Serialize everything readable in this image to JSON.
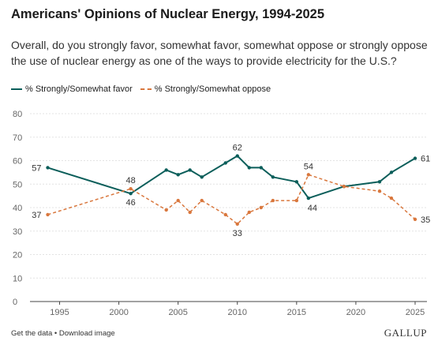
{
  "header": {
    "title": "Americans' Opinions of Nuclear Energy, 1994-2025",
    "subtitle": "Overall, do you strongly favor, somewhat favor, somewhat oppose or strongly oppose the use of nuclear energy as one of the ways to provide electricity for the U.S.?"
  },
  "footer": {
    "get_data": "Get the data",
    "separator": " • ",
    "download": "Download image",
    "brand": "GALLUP"
  },
  "colors": {
    "favor": "#0b5e5a",
    "oppose": "#d9773d",
    "grid": "#e3e3e3",
    "axis": "#444444"
  },
  "chart_data": {
    "type": "line",
    "title": "Americans' Opinions of Nuclear Energy, 1994-2025",
    "xlabel": "",
    "ylabel": "",
    "xlim": [
      1992.5,
      2026
    ],
    "ylim": [
      0,
      80
    ],
    "x_ticks": [
      1995,
      2000,
      2005,
      2010,
      2015,
      2020,
      2025
    ],
    "y_ticks": [
      0,
      10,
      20,
      30,
      40,
      50,
      60,
      70,
      80
    ],
    "grid": true,
    "legend": "top-left",
    "series": [
      {
        "name": "% Strongly/Somewhat favor",
        "style": "solid",
        "x": [
          1994,
          2001,
          2004,
          2005,
          2006,
          2007,
          2009,
          2010,
          2011,
          2012,
          2013,
          2015,
          2016,
          2019,
          2022,
          2023,
          2025
        ],
        "values": [
          57,
          46,
          56,
          54,
          56,
          53,
          59,
          62,
          57,
          57,
          53,
          51,
          44,
          49,
          51,
          55,
          61
        ]
      },
      {
        "name": "% Strongly/Somewhat oppose",
        "style": "dashed",
        "x": [
          1994,
          2001,
          2004,
          2005,
          2006,
          2007,
          2009,
          2010,
          2011,
          2012,
          2013,
          2015,
          2016,
          2019,
          2022,
          2023,
          2025
        ],
        "values": [
          37,
          48,
          39,
          43,
          38,
          43,
          37,
          33,
          38,
          40,
          43,
          43,
          54,
          49,
          47,
          44,
          35
        ]
      }
    ],
    "data_labels": [
      {
        "series": 0,
        "x": 1994,
        "value": "57",
        "pos": "left"
      },
      {
        "series": 0,
        "x": 2001,
        "value": "46",
        "pos": "below"
      },
      {
        "series": 0,
        "x": 2010,
        "value": "62",
        "pos": "above"
      },
      {
        "series": 0,
        "x": 2016,
        "value": "44",
        "pos": "below-right"
      },
      {
        "series": 0,
        "x": 2025,
        "value": "61",
        "pos": "right"
      },
      {
        "series": 1,
        "x": 1994,
        "value": "37",
        "pos": "left"
      },
      {
        "series": 1,
        "x": 2001,
        "value": "48",
        "pos": "above"
      },
      {
        "series": 1,
        "x": 2010,
        "value": "33",
        "pos": "below"
      },
      {
        "series": 1,
        "x": 2016,
        "value": "54",
        "pos": "above"
      },
      {
        "series": 1,
        "x": 2025,
        "value": "35",
        "pos": "right"
      }
    ]
  }
}
